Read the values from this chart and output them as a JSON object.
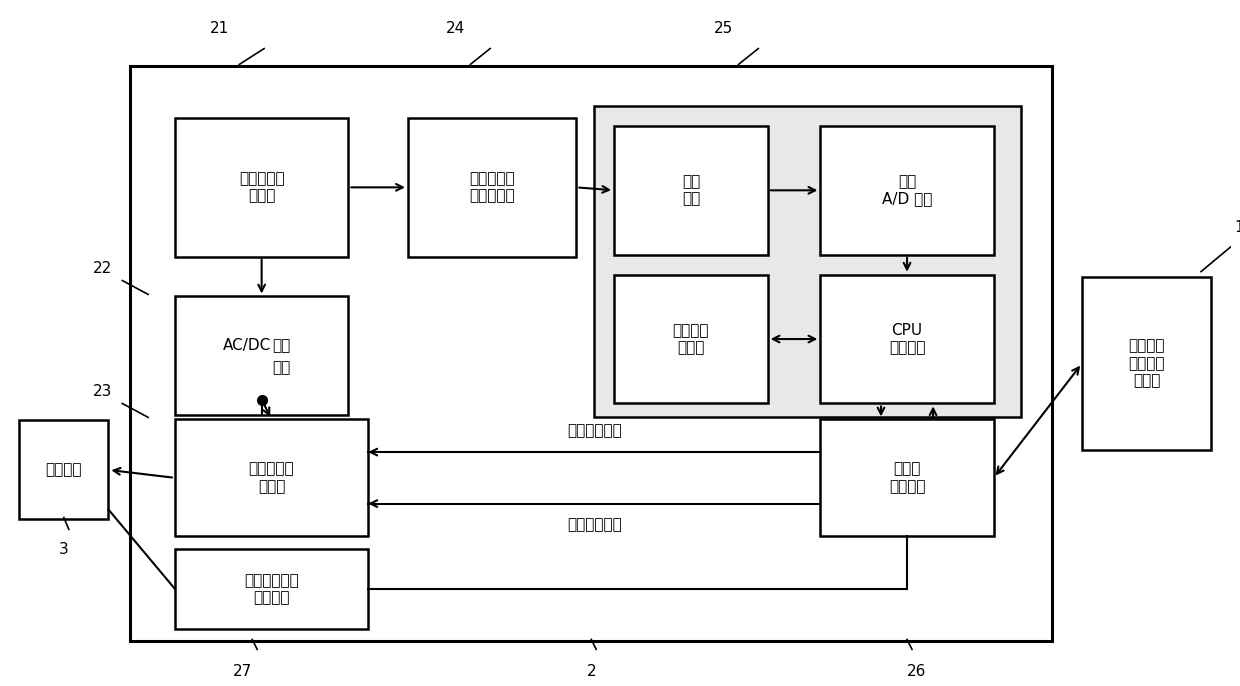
{
  "bg_color": "#ffffff",
  "line_color": "#000000",
  "fig_width": 12.4,
  "fig_height": 6.86,
  "labels": {
    "box21": "交流双路切\n换模块",
    "box22_line1": "AC/DC",
    "box22_line2": "操作\n电源",
    "box23_ctrl": "操动机构控\n制单元",
    "box23_sw": "开关位置信息\n采集模块",
    "box24": "波形采集隔\n离变送模块",
    "box25_filter": "滤波\n回路",
    "box25_ad": "高速\nA/D 采样",
    "box25_mem": "波形本地\n存储器",
    "box25_cpu": "CPU\n核心平台",
    "box26": "以太网\n通信单元",
    "box_switch": "配电开关",
    "box1": "主站波形\n记录与分\n析系统",
    "text_remote": "遥控操作系统",
    "text_manual": "手动操作系统"
  }
}
